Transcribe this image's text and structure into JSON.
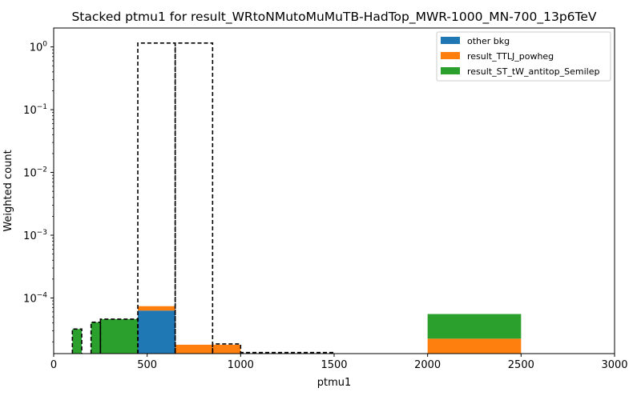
{
  "chart_data": {
    "type": "bar",
    "title": "Stacked ptmu1 for result_WRtoNMutoMuMuTB-HadTop_MWR-1000_MN-700_13p6TeV",
    "xlabel": "ptmu1",
    "ylabel": "Weighted count",
    "xlim": [
      0,
      3000
    ],
    "ylim": [
      1.3e-05,
      2.0
    ],
    "yscale": "log",
    "xticks": [
      0,
      500,
      1000,
      1500,
      2000,
      2500,
      3000
    ],
    "yticks": [
      {
        "value": 0.0001,
        "label": "10^-4"
      },
      {
        "value": 0.001,
        "label": "10^-3"
      },
      {
        "value": 0.01,
        "label": "10^-2"
      },
      {
        "value": 0.1,
        "label": "10^-1"
      },
      {
        "value": 1,
        "label": "10^0"
      }
    ],
    "grid": false,
    "legend_position": "top-right",
    "series": [
      {
        "name": "other bkg",
        "color": "#1f77b4",
        "bins": [
          {
            "x0": 450,
            "x1": 650,
            "value": 6.3e-05
          }
        ]
      },
      {
        "name": "result_TTLJ_powheg",
        "color": "#ff7f0e",
        "bins": [
          {
            "x0": 450,
            "x1": 650,
            "value": 1.1e-05
          },
          {
            "x0": 650,
            "x1": 850,
            "value": 1.8e-05
          },
          {
            "x0": 850,
            "x1": 1000,
            "value": 1.8e-05
          },
          {
            "x0": 2000,
            "x1": 2500,
            "value": 2.25e-05
          }
        ]
      },
      {
        "name": "result_ST_tW_antitop_Semilep",
        "color": "#2ca02c",
        "bins": [
          {
            "x0": 100,
            "x1": 150,
            "value": 3.2e-05
          },
          {
            "x0": 200,
            "x1": 250,
            "value": 4.1e-05
          },
          {
            "x0": 250,
            "x1": 450,
            "value": 4.6e-05
          },
          {
            "x0": 2000,
            "x1": 2500,
            "value": 3.3e-05
          }
        ]
      }
    ],
    "signal": {
      "style": "dashed-step",
      "color": "#000000",
      "bins": [
        {
          "x0": 100,
          "x1": 150,
          "value": 3.2e-05
        },
        {
          "x0": 200,
          "x1": 250,
          "value": 4.1e-05
        },
        {
          "x0": 250,
          "x1": 450,
          "value": 4.6e-05
        },
        {
          "x0": 450,
          "x1": 650,
          "value": 1.15
        },
        {
          "x0": 650,
          "x1": 850,
          "value": 1.15
        },
        {
          "x0": 850,
          "x1": 1000,
          "value": 1.85e-05
        },
        {
          "x0": 1000,
          "x1": 1500,
          "value": 1.35e-05
        }
      ]
    }
  }
}
